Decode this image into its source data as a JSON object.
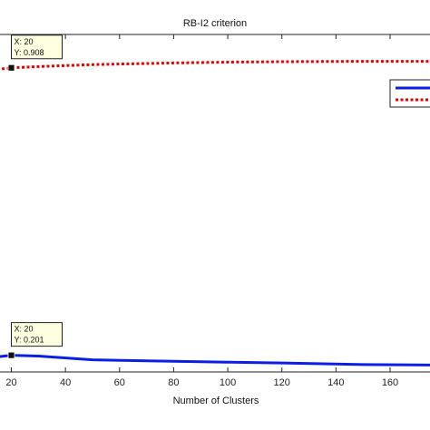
{
  "chart_data": {
    "type": "line",
    "title": "RB-I2 criterion",
    "xlabel": "Number of Clusters",
    "ylabel": "",
    "xlim": [
      4,
      180
    ],
    "ylim": [
      0.16,
      0.99
    ],
    "x_ticks": [
      "20",
      "40",
      "60",
      "80",
      "100",
      "120",
      "140",
      "160"
    ],
    "grid": false,
    "legend_position": "top-right (partially cropped)",
    "series": [
      {
        "color": "#e60000",
        "line_style": "dotted",
        "x": [
          4,
          8,
          12,
          16,
          20,
          30,
          50,
          80,
          100,
          120,
          150,
          180
        ],
        "y": [
          0.885,
          0.894,
          0.901,
          0.905,
          0.908,
          0.911,
          0.916,
          0.92,
          0.922,
          0.923,
          0.924,
          0.924
        ]
      },
      {
        "color": "#0a1ee6",
        "line_style": "solid",
        "x": [
          4,
          8,
          12,
          16,
          20,
          30,
          50,
          80,
          100,
          120,
          150,
          180
        ],
        "y": [
          0.225,
          0.218,
          0.207,
          0.198,
          0.201,
          0.199,
          0.19,
          0.186,
          0.184,
          0.182,
          0.178,
          0.177
        ]
      }
    ],
    "annotations": [
      {
        "series": 0,
        "x": 20,
        "y": 0.908,
        "line1": "X: 20",
        "line2": "Y: 0.908"
      },
      {
        "series": 1,
        "x": 20,
        "y": 0.201,
        "line1": "X: 20",
        "line2": "Y: 0.201"
      }
    ]
  }
}
